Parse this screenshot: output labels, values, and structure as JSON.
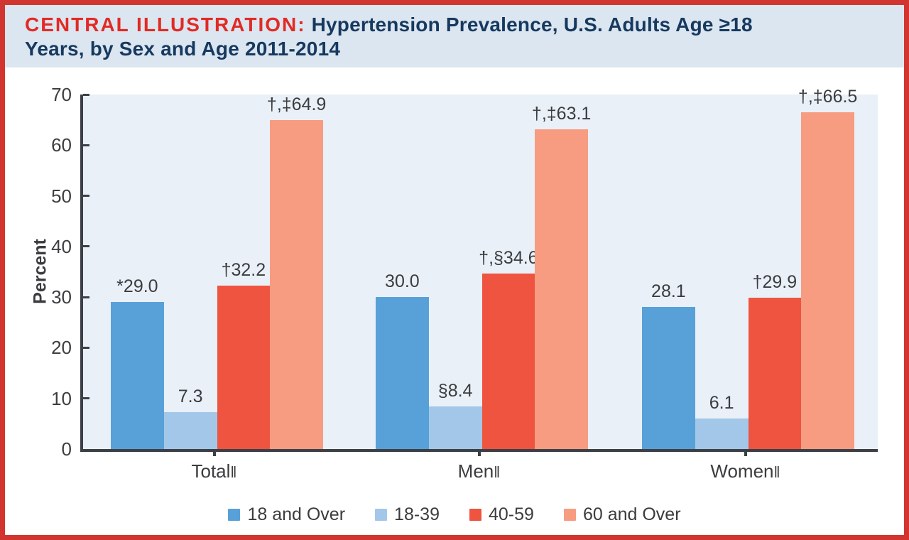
{
  "title": {
    "line1_red": "CENTRAL ILLUSTRATION:",
    "line1_navy": " Hypertension Prevalence, U.S. Adults Age ≥18",
    "line2_navy": "Years, by Sex and Age 2011-2014"
  },
  "colors": {
    "frame_red": "#d23530",
    "title_red": "#e22a25",
    "title_navy": "#16395f",
    "title_band_bg": "#dce6f0",
    "plot_bg": "#e9f0f8",
    "axis": "#3c4046"
  },
  "chart_data": {
    "type": "bar",
    "title": "Hypertension Prevalence, U.S. Adults Age ≥18 Years, by Sex and Age 2011-2014",
    "ylabel": "Percent",
    "xlabel": "",
    "ylim": [
      0,
      70
    ],
    "yticks": [
      0,
      10,
      20,
      30,
      40,
      50,
      60,
      70
    ],
    "grid": false,
    "legend_position": "bottom",
    "categories": [
      "Total",
      "Men",
      "Women"
    ],
    "category_marker": "‖",
    "series": [
      {
        "name": "18 and Over",
        "color": "#58a1d8",
        "values": [
          29.0,
          30.0,
          28.1
        ],
        "labels": [
          "*29.0",
          "30.0",
          "28.1"
        ]
      },
      {
        "name": "18-39",
        "color": "#a3c7e9",
        "values": [
          7.3,
          8.4,
          6.1
        ],
        "labels": [
          "7.3",
          "§8.4",
          "6.1"
        ]
      },
      {
        "name": "40-59",
        "color": "#ee5440",
        "values": [
          32.2,
          34.6,
          29.9
        ],
        "labels": [
          "†32.2",
          "†,§34.6",
          "†29.9"
        ]
      },
      {
        "name": "60 and Over",
        "color": "#f79c80",
        "values": [
          64.9,
          63.1,
          66.5
        ],
        "labels": [
          "†,‡64.9",
          "†,‡63.1",
          "†,‡66.5"
        ]
      }
    ]
  }
}
